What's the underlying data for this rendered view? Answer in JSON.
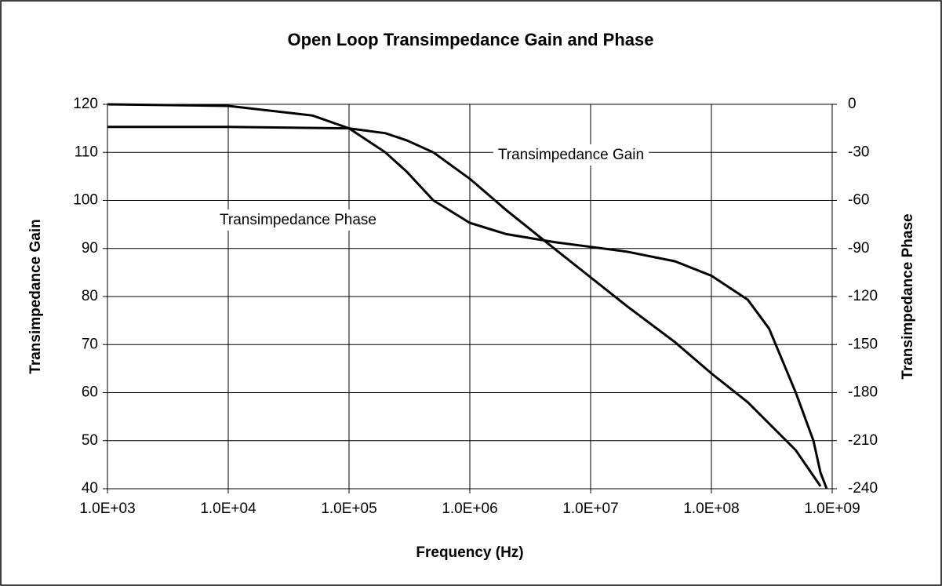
{
  "chart_data": {
    "type": "line",
    "title": "Open Loop Transimpedance Gain and Phase",
    "x_label": "Frequency (Hz)",
    "y_label": "Transimpedance Gain",
    "y2_label": "Transimpedance Phase",
    "x_scale": "log",
    "grid": true,
    "xlim": [
      1000,
      1000000000
    ],
    "xticks": [
      {
        "value": 1000,
        "label": "1.0E+03"
      },
      {
        "value": 10000,
        "label": "1.0E+04"
      },
      {
        "value": 100000,
        "label": "1.0E+05"
      },
      {
        "value": 1000000,
        "label": "1.0E+06"
      },
      {
        "value": 10000000,
        "label": "1.0E+07"
      },
      {
        "value": 100000000,
        "label": "1.0E+08"
      },
      {
        "value": 1000000000,
        "label": "1.0E+09"
      }
    ],
    "ylim": [
      40,
      120
    ],
    "yticks": [
      40,
      50,
      60,
      70,
      80,
      90,
      100,
      110,
      120
    ],
    "y2lim": [
      -240,
      0
    ],
    "y2ticks": [
      -240,
      -210,
      -180,
      -150,
      -120,
      -90,
      -60,
      -30,
      0
    ],
    "series": [
      {
        "name": "Transimpedance Gain",
        "color": "#000000",
        "x": [
          1000,
          10000,
          100000,
          200000,
          300000,
          500000,
          1000000,
          2000000,
          5000000,
          10000000,
          20000000,
          50000000,
          100000000,
          200000000,
          500000000,
          800000000
        ],
        "values": [
          115.3,
          115.3,
          115,
          114,
          112.5,
          110,
          104.5,
          98,
          90,
          84,
          78,
          70.5,
          64,
          58,
          48,
          40.5
        ]
      },
      {
        "name": "Transimpedance Phase",
        "color": "#000000",
        "axis": "y2",
        "x": [
          1000,
          10000,
          50000,
          100000,
          200000,
          300000,
          500000,
          1000000,
          2000000,
          5000000,
          10000000,
          20000000,
          50000000,
          100000000,
          200000000,
          300000000,
          500000000,
          700000000,
          800000000,
          900000000
        ],
        "values": [
          0,
          -1,
          -7,
          -15,
          -30,
          -42,
          -60,
          -74,
          -81,
          -86,
          -89,
          -92,
          -98,
          -107,
          -122,
          -140,
          -180,
          -210,
          -230,
          -240
        ]
      }
    ]
  }
}
